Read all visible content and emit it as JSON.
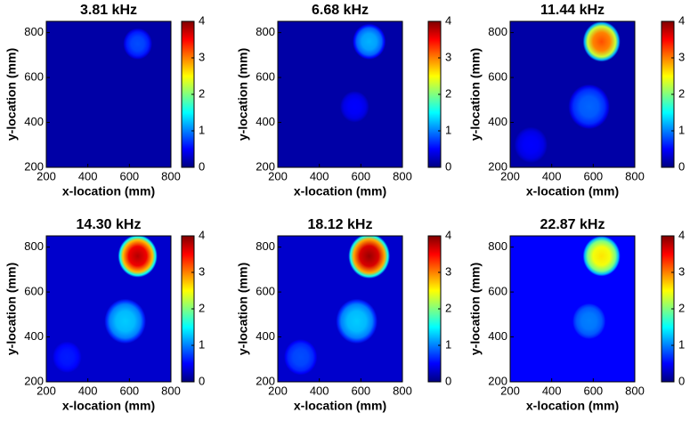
{
  "chart_data": [
    {
      "type": "heatmap",
      "title": "3.81 kHz",
      "xlabel": "x-location (mm)",
      "ylabel": "y-location (mm)",
      "xlim": [
        200,
        800
      ],
      "xticks": [
        200,
        400,
        600,
        800
      ],
      "ylim": [
        200,
        850
      ],
      "yticks": [
        200,
        400,
        600,
        800
      ],
      "clim": [
        0,
        4
      ],
      "cticks": [
        0,
        1,
        2,
        3,
        4
      ],
      "background": 0.15,
      "sources": [
        {
          "x": 640,
          "y": 750,
          "radius": 70,
          "peak": 0.8
        }
      ]
    },
    {
      "type": "heatmap",
      "title": "6.68 kHz",
      "xlabel": "x-location (mm)",
      "ylabel": "y-location (mm)",
      "xlim": [
        200,
        800
      ],
      "xticks": [
        200,
        400,
        600,
        800
      ],
      "ylim": [
        200,
        850
      ],
      "yticks": [
        200,
        400,
        600,
        800
      ],
      "clim": [
        0,
        4
      ],
      "cticks": [
        0,
        1,
        2,
        3,
        4
      ],
      "background": 0.15,
      "sources": [
        {
          "x": 640,
          "y": 760,
          "radius": 80,
          "peak": 1.2
        },
        {
          "x": 570,
          "y": 470,
          "radius": 70,
          "peak": 0.5
        }
      ]
    },
    {
      "type": "heatmap",
      "title": "11.44 kHz",
      "xlabel": "x-location (mm)",
      "ylabel": "y-location (mm)",
      "xlim": [
        200,
        800
      ],
      "xticks": [
        200,
        400,
        600,
        800
      ],
      "ylim": [
        200,
        850
      ],
      "yticks": [
        200,
        400,
        600,
        800
      ],
      "clim": [
        0,
        4
      ],
      "cticks": [
        0,
        1,
        2,
        3,
        4
      ],
      "background": 0.15,
      "sources": [
        {
          "x": 640,
          "y": 760,
          "radius": 90,
          "peak": 3.2
        },
        {
          "x": 580,
          "y": 470,
          "radius": 100,
          "peak": 0.9
        },
        {
          "x": 300,
          "y": 300,
          "radius": 80,
          "peak": 0.5
        }
      ]
    },
    {
      "type": "heatmap",
      "title": "14.30 kHz",
      "xlabel": "x-location (mm)",
      "ylabel": "y-location (mm)",
      "xlim": [
        200,
        800
      ],
      "xticks": [
        200,
        400,
        600,
        800
      ],
      "ylim": [
        200,
        850
      ],
      "yticks": [
        200,
        400,
        600,
        800
      ],
      "clim": [
        0,
        4
      ],
      "cticks": [
        0,
        1,
        2,
        3,
        4
      ],
      "background": 0.3,
      "sources": [
        {
          "x": 640,
          "y": 760,
          "radius": 95,
          "peak": 3.8
        },
        {
          "x": 580,
          "y": 470,
          "radius": 100,
          "peak": 1.3
        },
        {
          "x": 300,
          "y": 310,
          "radius": 70,
          "peak": 0.6
        }
      ]
    },
    {
      "type": "heatmap",
      "title": "18.12 kHz",
      "xlabel": "x-location (mm)",
      "ylabel": "y-location (mm)",
      "xlim": [
        200,
        800
      ],
      "xticks": [
        200,
        400,
        600,
        800
      ],
      "ylim": [
        200,
        850
      ],
      "yticks": [
        200,
        400,
        600,
        800
      ],
      "clim": [
        0,
        4
      ],
      "cticks": [
        0,
        1,
        2,
        3,
        4
      ],
      "background": 0.3,
      "sources": [
        {
          "x": 640,
          "y": 760,
          "radius": 100,
          "peak": 3.9
        },
        {
          "x": 580,
          "y": 470,
          "radius": 100,
          "peak": 1.3
        },
        {
          "x": 310,
          "y": 310,
          "radius": 80,
          "peak": 0.8
        }
      ]
    },
    {
      "type": "heatmap",
      "title": "22.87 kHz",
      "xlabel": "x-location (mm)",
      "ylabel": "y-location (mm)",
      "xlim": [
        200,
        800
      ],
      "xticks": [
        200,
        400,
        600,
        800
      ],
      "ylim": [
        200,
        850
      ],
      "yticks": [
        200,
        400,
        600,
        800
      ],
      "clim": [
        0,
        4
      ],
      "cticks": [
        0,
        1,
        2,
        3,
        4
      ],
      "background": 0.5,
      "sources": [
        {
          "x": 640,
          "y": 760,
          "radius": 90,
          "peak": 2.6
        },
        {
          "x": 580,
          "y": 470,
          "radius": 80,
          "peak": 1.0
        }
      ]
    }
  ]
}
